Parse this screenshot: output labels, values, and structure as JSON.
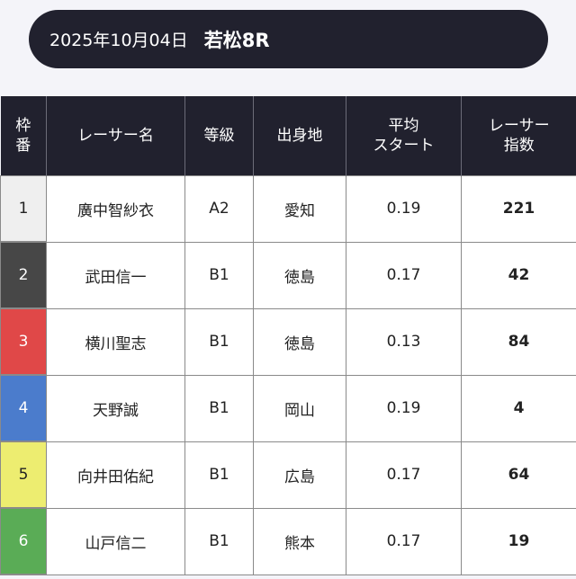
{
  "header": {
    "date": "2025年10月04日",
    "race": "若松8R"
  },
  "columns": [
    {
      "line1": "枠",
      "line2": "番"
    },
    {
      "line1": "レーサー名",
      "line2": ""
    },
    {
      "line1": "等級",
      "line2": ""
    },
    {
      "line1": "出身地",
      "line2": ""
    },
    {
      "line1": "平均",
      "line2": "スタート"
    },
    {
      "line1": "レーサー",
      "line2": "指数"
    }
  ],
  "rows": [
    {
      "frame": "1",
      "name": "廣中智紗衣",
      "grade": "A2",
      "origin": "愛知",
      "avg_start": "0.19",
      "index": "221",
      "frame_color": "#efefef",
      "frame_text": "#222222"
    },
    {
      "frame": "2",
      "name": "武田信一",
      "grade": "B1",
      "origin": "徳島",
      "avg_start": "0.17",
      "index": "42",
      "frame_color": "#474747",
      "frame_text": "#ffffff"
    },
    {
      "frame": "3",
      "name": "横川聖志",
      "grade": "B1",
      "origin": "徳島",
      "avg_start": "0.13",
      "index": "84",
      "frame_color": "#e04848",
      "frame_text": "#ffffff"
    },
    {
      "frame": "4",
      "name": "天野誠",
      "grade": "B1",
      "origin": "岡山",
      "avg_start": "0.19",
      "index": "4",
      "frame_color": "#4b7ccc",
      "frame_text": "#ffffff"
    },
    {
      "frame": "5",
      "name": "向井田佑紀",
      "grade": "B1",
      "origin": "広島",
      "avg_start": "0.17",
      "index": "64",
      "frame_color": "#eded70",
      "frame_text": "#222222"
    },
    {
      "frame": "6",
      "name": "山戸信二",
      "grade": "B1",
      "origin": "熊本",
      "avg_start": "0.17",
      "index": "19",
      "frame_color": "#5aac56",
      "frame_text": "#ffffff"
    }
  ]
}
